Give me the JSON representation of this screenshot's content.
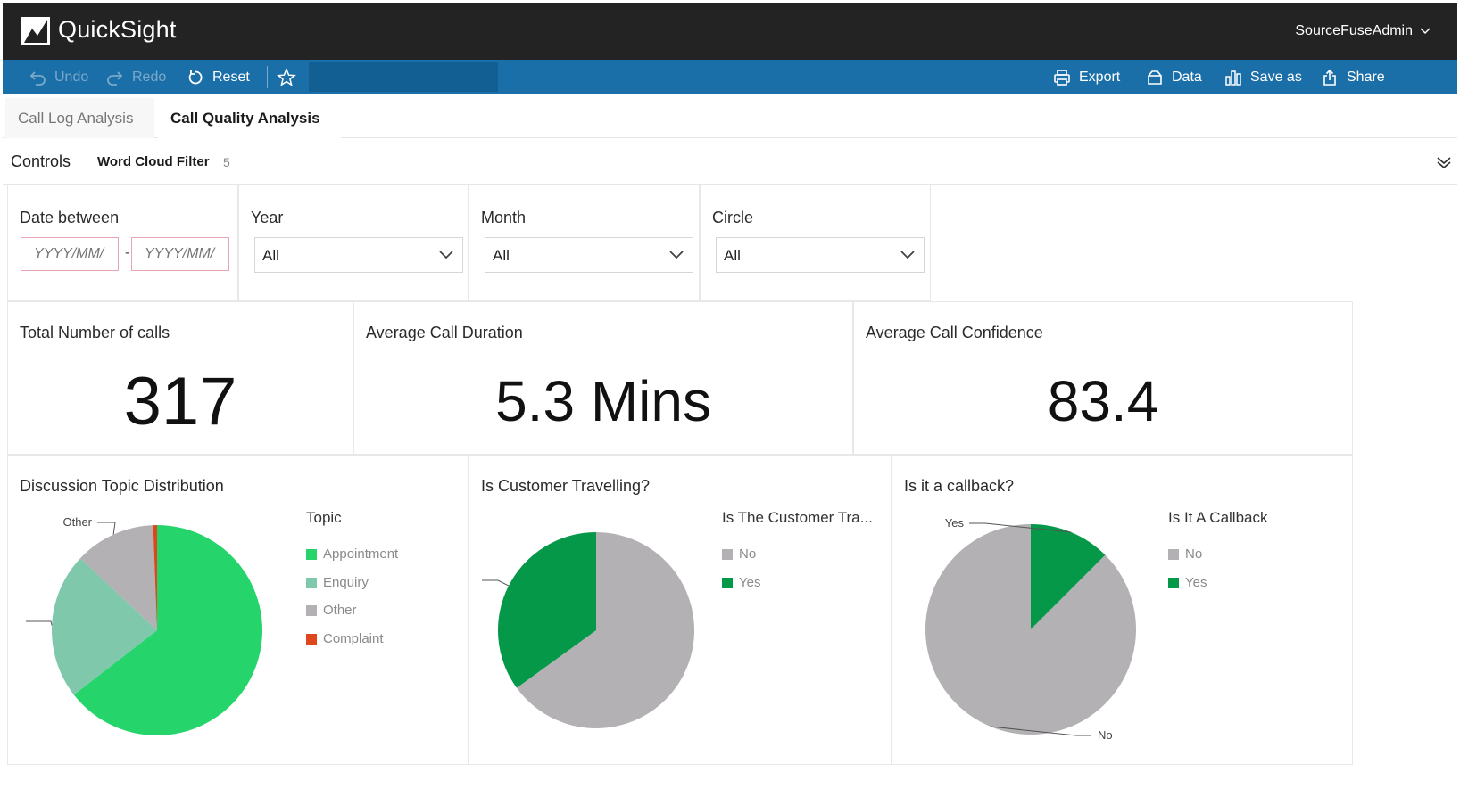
{
  "app": {
    "title": "QuickSight",
    "user": "SourceFuseAdmin"
  },
  "toolbar": {
    "undo_label": "Undo",
    "redo_label": "Redo",
    "reset_label": "Reset",
    "export_label": "Export",
    "data_label": "Data",
    "save_as_label": "Save as",
    "share_label": "Share"
  },
  "tabs": [
    {
      "label": "Call Log Analysis",
      "active": false
    },
    {
      "label": "Call Quality Analysis",
      "active": true
    }
  ],
  "controls": {
    "label": "Controls",
    "filter_label": "Word Cloud Filter",
    "filter_count": "5"
  },
  "filters": {
    "date": {
      "label": "Date between",
      "from_placeholder": "YYYY/MM/",
      "to_placeholder": "YYYY/MM/",
      "separator": "-"
    },
    "year": {
      "label": "Year",
      "value": "All"
    },
    "month": {
      "label": "Month",
      "value": "All"
    },
    "circle": {
      "label": "Circle",
      "value": "All"
    }
  },
  "kpis": {
    "total_calls": {
      "title": "Total Number of calls",
      "value": "317"
    },
    "avg_duration": {
      "title": "Average Call Duration",
      "value": "5.3 Mins"
    },
    "avg_confidence": {
      "title": "Average Call Confidence",
      "value": "83.4"
    }
  },
  "colors": {
    "appointment": "#26d46c",
    "enquiry": "#80c8ab",
    "other": "#b3b1b3",
    "complaint": "#e0461c",
    "yes": "#049848",
    "no": "#b3b1b3"
  },
  "chart_data": [
    {
      "type": "pie",
      "title": "Discussion Topic Distribution",
      "legend_title": "Topic",
      "slices": [
        {
          "label": "Appointment",
          "value": 64.5,
          "color": "#26d46c"
        },
        {
          "label": "Enquiry",
          "value": 22.5,
          "color": "#80c8ab"
        },
        {
          "label": "Other",
          "value": 12.4,
          "color": "#b3b1b3"
        },
        {
          "label": "Complaint",
          "value": 0.6,
          "color": "#e0461c"
        }
      ],
      "annotations": [
        "Other"
      ]
    },
    {
      "type": "pie",
      "title": "Is Customer Travelling?",
      "legend_title": "Is The Customer Tra...",
      "slices": [
        {
          "label": "No",
          "value": 65,
          "color": "#b3b1b3"
        },
        {
          "label": "Yes",
          "value": 35,
          "color": "#049848"
        }
      ]
    },
    {
      "type": "pie",
      "title": "Is it a callback?",
      "legend_title": "Is It A Callback",
      "slices": [
        {
          "label": "No",
          "value": 87.5,
          "color": "#b3b1b3"
        },
        {
          "label": "Yes",
          "value": 12.5,
          "color": "#049848"
        }
      ],
      "annotations": [
        "Yes",
        "No"
      ]
    }
  ]
}
